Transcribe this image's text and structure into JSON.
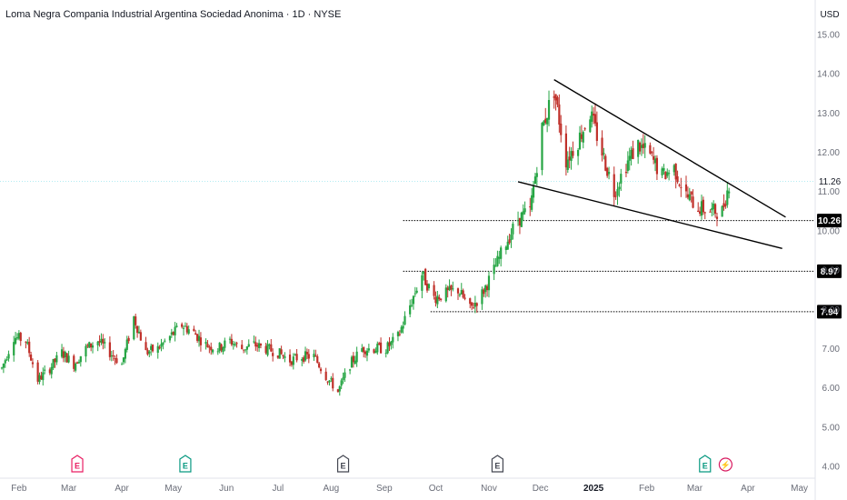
{
  "header": {
    "title": "Loma Negra Compania Industrial Argentina Sociedad Anonima · 1D · NYSE",
    "currency": "USD"
  },
  "colors": {
    "up": "#26a544",
    "down": "#c0302a",
    "trendline": "#000000",
    "level_line": "#000000",
    "last_price_line": "#b2ebf2",
    "earnings_red": "#e91e63",
    "earnings_green": "#089981",
    "earnings_dark": "#434651",
    "dividend": "#d81b60"
  },
  "chart_data": {
    "type": "candlestick",
    "symbol": "LOMA",
    "exchange": "NYSE",
    "interval": "1D",
    "ylim": [
      4.0,
      15.4
    ],
    "yticks": [
      "15.00",
      "14.00",
      "13.00",
      "12.00",
      "11.00",
      "10.00",
      "9.00",
      "8.00",
      "7.00",
      "6.00",
      "5.00",
      "4.00"
    ],
    "xticks": [
      "Feb",
      "Mar",
      "Apr",
      "May",
      "Jun",
      "Jul",
      "Aug",
      "Sep",
      "Oct",
      "Nov",
      "Dec",
      "2025",
      "Feb",
      "Mar",
      "Apr",
      "May"
    ],
    "x_range": [
      "2024-01-22",
      "2025-05-06"
    ],
    "last_price": "11.26",
    "levels": [
      "10.26",
      "8.97",
      "7.94"
    ],
    "trendlines": [
      {
        "name": "upper",
        "points": [
          [
            "2024-12-09",
            13.85
          ],
          [
            "2025-04-23",
            10.35
          ]
        ]
      },
      {
        "name": "lower",
        "points": [
          [
            "2024-11-18",
            11.25
          ],
          [
            "2025-04-21",
            9.55
          ]
        ]
      }
    ],
    "events": [
      {
        "type": "earnings",
        "label": "E",
        "date": "2024-03-06",
        "style": "red"
      },
      {
        "type": "earnings",
        "label": "E",
        "date": "2024-05-08",
        "style": "green"
      },
      {
        "type": "earnings",
        "label": "E",
        "date": "2024-08-08",
        "style": "dark"
      },
      {
        "type": "earnings",
        "label": "E",
        "date": "2024-11-06",
        "style": "dark"
      },
      {
        "type": "earnings",
        "label": "E",
        "date": "2025-03-07",
        "style": "green"
      },
      {
        "type": "dividend",
        "label": "⚡",
        "date": "2025-03-19",
        "style": "dividend"
      }
    ],
    "price_path": [
      [
        "2024-01-22",
        6.5
      ],
      [
        "2024-01-29",
        7.3
      ],
      [
        "2024-02-05",
        7.2
      ],
      [
        "2024-02-12",
        6.2
      ],
      [
        "2024-02-19",
        6.5
      ],
      [
        "2024-02-26",
        6.9
      ],
      [
        "2024-03-04",
        6.6
      ],
      [
        "2024-03-11",
        7.0
      ],
      [
        "2024-03-18",
        7.2
      ],
      [
        "2024-03-25",
        6.9
      ],
      [
        "2024-04-01",
        6.6
      ],
      [
        "2024-04-08",
        7.8
      ],
      [
        "2024-04-15",
        6.9
      ],
      [
        "2024-04-22",
        7.0
      ],
      [
        "2024-04-29",
        7.3
      ],
      [
        "2024-05-06",
        7.6
      ],
      [
        "2024-05-13",
        7.4
      ],
      [
        "2024-05-20",
        7.1
      ],
      [
        "2024-05-27",
        7.0
      ],
      [
        "2024-06-03",
        7.2
      ],
      [
        "2024-06-10",
        7.0
      ],
      [
        "2024-06-17",
        7.1
      ],
      [
        "2024-06-24",
        7.0
      ],
      [
        "2024-07-01",
        6.9
      ],
      [
        "2024-07-08",
        6.7
      ],
      [
        "2024-07-15",
        6.8
      ],
      [
        "2024-07-22",
        6.8
      ],
      [
        "2024-07-29",
        6.3
      ],
      [
        "2024-08-05",
        5.9
      ],
      [
        "2024-08-12",
        6.6
      ],
      [
        "2024-08-19",
        7.0
      ],
      [
        "2024-08-26",
        7.0
      ],
      [
        "2024-09-02",
        7.0
      ],
      [
        "2024-09-09",
        7.3
      ],
      [
        "2024-09-16",
        8.1
      ],
      [
        "2024-09-23",
        8.9
      ],
      [
        "2024-09-30",
        8.3
      ],
      [
        "2024-10-07",
        8.4
      ],
      [
        "2024-10-14",
        8.5
      ],
      [
        "2024-10-21",
        8.0
      ],
      [
        "2024-10-28",
        8.4
      ],
      [
        "2024-11-04",
        9.0
      ],
      [
        "2024-11-11",
        9.7
      ],
      [
        "2024-11-18",
        10.3
      ],
      [
        "2024-11-25",
        10.5
      ],
      [
        "2024-12-02",
        12.6
      ],
      [
        "2024-12-09",
        13.6
      ],
      [
        "2024-12-16",
        11.8
      ],
      [
        "2024-12-23",
        12.3
      ],
      [
        "2024-12-30",
        13.0
      ],
      [
        "2025-01-06",
        12.0
      ],
      [
        "2025-01-13",
        11.0
      ],
      [
        "2025-01-20",
        11.7
      ],
      [
        "2025-01-27",
        12.2
      ],
      [
        "2025-02-03",
        11.9
      ],
      [
        "2025-02-10",
        11.4
      ],
      [
        "2025-02-17",
        11.6
      ],
      [
        "2025-02-24",
        10.9
      ],
      [
        "2025-03-03",
        10.6
      ],
      [
        "2025-03-10",
        10.5
      ],
      [
        "2025-03-17",
        10.5
      ],
      [
        "2025-03-21",
        11.2
      ]
    ]
  }
}
